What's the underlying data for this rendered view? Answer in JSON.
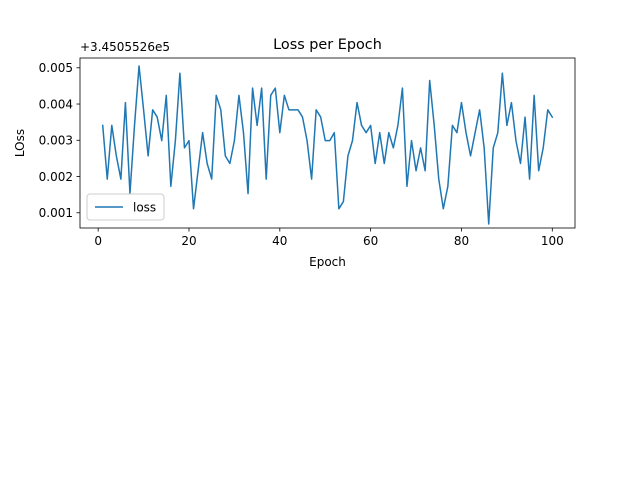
{
  "chart_data": {
    "type": "line",
    "title": "Loss per Epoch",
    "xlabel": "Epoch",
    "ylabel": "LOss",
    "offset_text": "+3.4505526e5",
    "xlim": [
      -4,
      105
    ],
    "ylim": [
      0.00058,
      0.00527
    ],
    "xticks": [
      0,
      20,
      40,
      60,
      80,
      100
    ],
    "xtick_labels": [
      "0",
      "20",
      "40",
      "60",
      "80",
      "100"
    ],
    "yticks": [
      0.001,
      0.002,
      0.003,
      0.004,
      0.005
    ],
    "ytick_labels": [
      "0.001",
      "0.002",
      "0.003",
      "0.004",
      "0.005"
    ],
    "grid": false,
    "legend_position": "lower-left",
    "series": [
      {
        "name": "loss",
        "color": "#1f77b4",
        "x": [
          1,
          2,
          3,
          4,
          5,
          6,
          7,
          8,
          9,
          10,
          11,
          12,
          13,
          14,
          15,
          16,
          17,
          18,
          19,
          20,
          21,
          22,
          23,
          24,
          25,
          26,
          27,
          28,
          29,
          30,
          31,
          32,
          33,
          34,
          35,
          36,
          37,
          38,
          39,
          40,
          41,
          42,
          43,
          44,
          45,
          46,
          47,
          48,
          49,
          50,
          51,
          52,
          53,
          54,
          55,
          56,
          57,
          58,
          59,
          60,
          61,
          62,
          63,
          64,
          65,
          66,
          67,
          68,
          69,
          70,
          71,
          72,
          73,
          74,
          75,
          76,
          77,
          78,
          79,
          80,
          81,
          82,
          83,
          84,
          85,
          86,
          87,
          88,
          89,
          90,
          91,
          92,
          93,
          94,
          95,
          96,
          97,
          98,
          99,
          100
        ],
        "y": [
          0.00341,
          0.00193,
          0.00341,
          0.00257,
          0.00193,
          0.00404,
          0.00153,
          0.00341,
          0.00505,
          0.00384,
          0.00257,
          0.00384,
          0.00364,
          0.00299,
          0.00424,
          0.00173,
          0.00299,
          0.00485,
          0.00279,
          0.00299,
          0.00111,
          0.00216,
          0.00321,
          0.00236,
          0.00193,
          0.00424,
          0.00384,
          0.00257,
          0.00236,
          0.00299,
          0.00424,
          0.00321,
          0.00153,
          0.00444,
          0.00341,
          0.00444,
          0.00193,
          0.00424,
          0.00444,
          0.00321,
          0.00424,
          0.00384,
          0.00384,
          0.00384,
          0.00364,
          0.00299,
          0.00193,
          0.00384,
          0.00364,
          0.00299,
          0.00299,
          0.00321,
          0.00111,
          0.00131,
          0.00257,
          0.00299,
          0.00404,
          0.00341,
          0.00321,
          0.00341,
          0.00236,
          0.00321,
          0.00236,
          0.00321,
          0.00279,
          0.00341,
          0.00444,
          0.00173,
          0.00299,
          0.00216,
          0.00279,
          0.00216,
          0.00465,
          0.00341,
          0.00193,
          0.00111,
          0.00173,
          0.00341,
          0.00321,
          0.00404,
          0.00321,
          0.00257,
          0.00321,
          0.00384,
          0.00279,
          0.00069,
          0.00279,
          0.00321,
          0.00485,
          0.00341,
          0.00404,
          0.00299,
          0.00236,
          0.00364,
          0.00193,
          0.00424,
          0.00216,
          0.00279,
          0.00384,
          0.00364
        ]
      }
    ]
  }
}
